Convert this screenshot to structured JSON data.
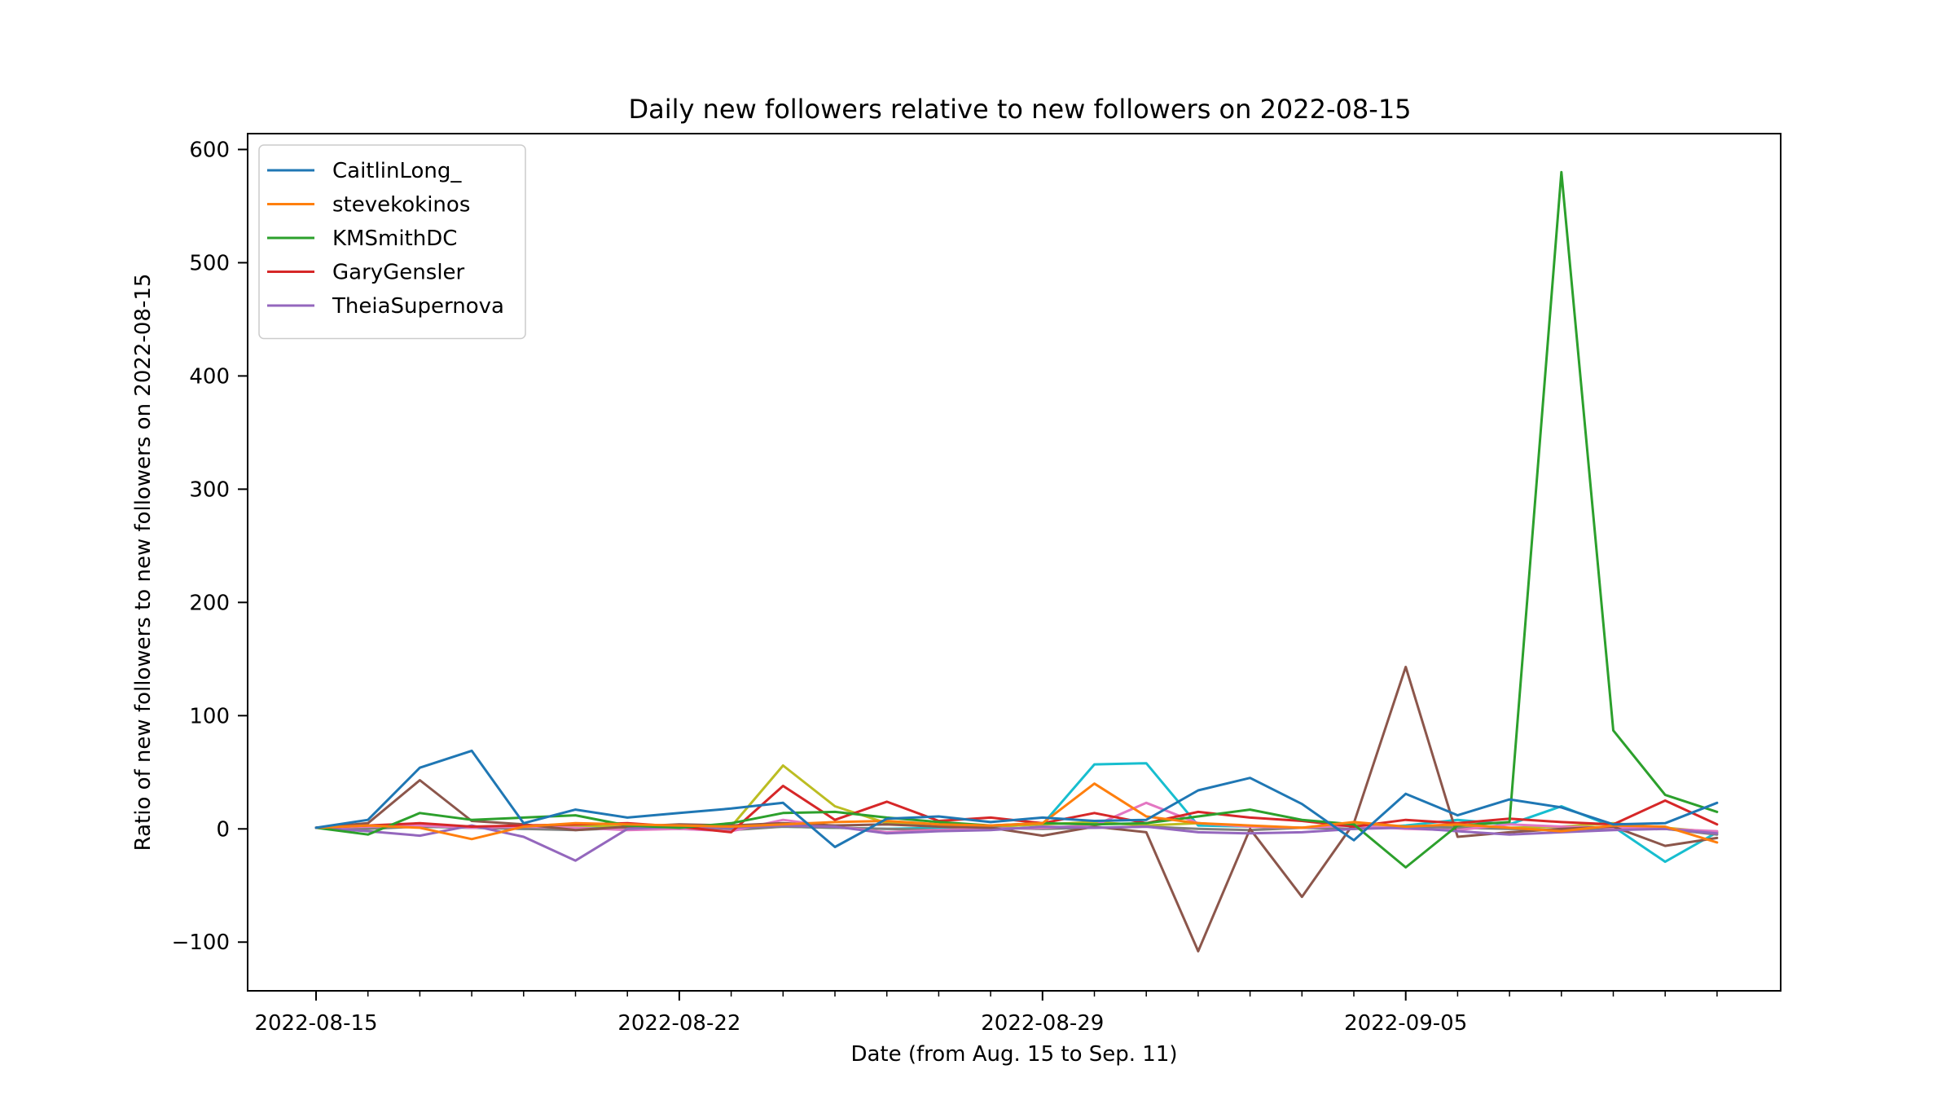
{
  "chart_data": {
    "type": "line",
    "title": "Daily new followers relative to new followers on 2022-08-15",
    "xlabel": "Date (from Aug. 15 to Sep. 11)",
    "ylabel": "Ratio of new followers to new followers on 2022-08-15",
    "x": [
      "2022-08-15",
      "2022-08-16",
      "2022-08-17",
      "2022-08-18",
      "2022-08-19",
      "2022-08-20",
      "2022-08-21",
      "2022-08-22",
      "2022-08-23",
      "2022-08-24",
      "2022-08-25",
      "2022-08-26",
      "2022-08-27",
      "2022-08-28",
      "2022-08-29",
      "2022-08-30",
      "2022-08-31",
      "2022-09-01",
      "2022-09-02",
      "2022-09-03",
      "2022-09-04",
      "2022-09-05",
      "2022-09-06",
      "2022-09-07",
      "2022-09-08",
      "2022-09-09",
      "2022-09-10",
      "2022-09-11"
    ],
    "xticks": [
      "2022-08-15",
      "2022-08-22",
      "2022-08-29",
      "2022-09-05"
    ],
    "yticks": [
      -100,
      0,
      100,
      200,
      300,
      400,
      500,
      600
    ],
    "ylim": [
      -143,
      614
    ],
    "legend_position": "upper-left",
    "series": [
      {
        "name": "CaitlinLong_",
        "color": "#1f77b4",
        "values": [
          1,
          8,
          54,
          69,
          5,
          17,
          10,
          14,
          18,
          23,
          -16,
          9,
          11,
          6,
          10,
          7,
          8,
          34,
          45,
          22,
          -10,
          31,
          12,
          26,
          19,
          4,
          5,
          23
        ]
      },
      {
        "name": "stevekokinos",
        "color": "#ff7f0e",
        "values": [
          1,
          3,
          1,
          -9,
          2,
          5,
          4,
          3,
          2,
          4,
          6,
          7,
          4,
          3,
          5,
          40,
          11,
          5,
          3,
          1,
          6,
          2,
          4,
          1,
          -2,
          3,
          2,
          -12
        ]
      },
      {
        "name": "KMSmithDC",
        "color": "#2ca02c",
        "values": [
          1,
          -5,
          14,
          8,
          10,
          12,
          3,
          1,
          5,
          14,
          15,
          10,
          6,
          3,
          5,
          4,
          5,
          11,
          17,
          8,
          4,
          -34,
          3,
          6,
          580,
          87,
          30,
          15
        ]
      },
      {
        "name": "GaryGensler",
        "color": "#d62728",
        "values": [
          1,
          3,
          5,
          2,
          3,
          4,
          5,
          2,
          -3,
          38,
          8,
          24,
          7,
          10,
          5,
          14,
          5,
          15,
          10,
          7,
          2,
          8,
          5,
          9,
          6,
          4,
          25,
          4
        ]
      },
      {
        "name": "TheiaSupernova",
        "color": "#9467bd",
        "values": [
          1,
          -2,
          -6,
          3,
          -7,
          -28,
          0,
          2,
          1,
          3,
          2,
          -4,
          -2,
          -1,
          2,
          1,
          2,
          -3,
          -4,
          -3,
          0,
          1,
          -2,
          -5,
          -3,
          -1,
          0,
          -4
        ]
      },
      {
        "name": "",
        "color": "#8c564b",
        "values": [
          1,
          5,
          43,
          7,
          4,
          -1,
          2,
          4,
          3,
          5,
          3,
          4,
          2,
          1,
          -6,
          2,
          -3,
          -108,
          0,
          -60,
          5,
          143,
          -7,
          -3,
          0,
          2,
          -15,
          -8
        ]
      },
      {
        "name": "",
        "color": "#e377c2",
        "values": [
          1,
          2,
          3,
          1,
          2,
          1,
          -1,
          0,
          -2,
          8,
          2,
          -3,
          -1,
          0,
          1,
          3,
          23,
          5,
          2,
          1,
          3,
          0,
          -1,
          4,
          2,
          1,
          0,
          -2
        ]
      },
      {
        "name": "",
        "color": "#7f7f7f",
        "values": [
          1,
          0,
          2,
          1,
          0,
          -1,
          1,
          0,
          -1,
          2,
          1,
          0,
          -1,
          1,
          0,
          1,
          2,
          0,
          -1,
          1,
          0,
          2,
          1,
          0,
          -1,
          1,
          0,
          -5
        ]
      },
      {
        "name": "",
        "color": "#bcbd22",
        "values": [
          1,
          2,
          3,
          2,
          1,
          3,
          2,
          1,
          2,
          56,
          20,
          5,
          3,
          2,
          4,
          6,
          3,
          5,
          2,
          1,
          4,
          2,
          3,
          1,
          2,
          5,
          1,
          -3
        ]
      },
      {
        "name": "",
        "color": "#17becf",
        "values": [
          1,
          1,
          2,
          1,
          0,
          1,
          2,
          1,
          0,
          2,
          1,
          0,
          1,
          2,
          4,
          57,
          58,
          3,
          2,
          1,
          0,
          3,
          8,
          4,
          20,
          2,
          -29,
          -3
        ]
      }
    ]
  }
}
